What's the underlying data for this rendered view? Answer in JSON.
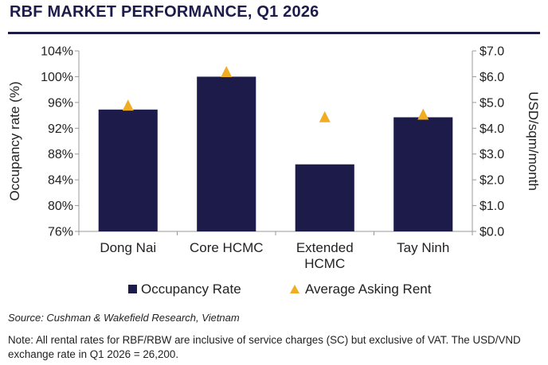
{
  "title": "RBF MARKET PERFORMANCE, Q1 2026",
  "colors": {
    "bar": "#1c1b4a",
    "marker": "#f0ad23",
    "axis": "#999999",
    "title": "#1c1b4a"
  },
  "chart_data": {
    "type": "bar",
    "categories": [
      [
        "Dong Nai"
      ],
      [
        "Core HCMC"
      ],
      [
        "Extended",
        "HCMC"
      ],
      [
        "Tay Ninh"
      ]
    ],
    "series": [
      {
        "name": "Occupancy Rate",
        "type": "bar",
        "axis": "left",
        "values": [
          94.9,
          100.0,
          86.4,
          93.7
        ]
      },
      {
        "name": "Average Asking Rent",
        "type": "marker",
        "marker": "triangle",
        "axis": "right",
        "values": [
          4.9,
          6.2,
          4.45,
          4.55
        ]
      }
    ],
    "ylabel_left": "Occupancy rate (%)",
    "ylabel_right": "USD/sqm/month",
    "ylim_left": [
      76,
      104
    ],
    "yticks_left": [
      76,
      80,
      84,
      88,
      92,
      96,
      100,
      104
    ],
    "ytick_labels_left": [
      "76%",
      "80%",
      "84%",
      "88%",
      "92%",
      "96%",
      "100%",
      "104%"
    ],
    "ylim_right": [
      0,
      7
    ],
    "yticks_right": [
      0,
      1,
      2,
      3,
      4,
      5,
      6,
      7
    ],
    "ytick_labels_right": [
      "$0.0",
      "$1.0",
      "$2.0",
      "$3.0",
      "$4.0",
      "$5.0",
      "$6.0",
      "$7.0"
    ],
    "grid": false,
    "legend": "bottom"
  },
  "legend": {
    "occupancy": "Occupancy Rate",
    "rent": "Average Asking Rent"
  },
  "source": "Source: Cushman & Wakefield Research, Vietnam",
  "note": "Note: All rental rates for RBF/RBW are inclusive of service charges (SC) but exclusive of VAT. The USD/VND exchange rate in Q1 2026 = 26,200."
}
